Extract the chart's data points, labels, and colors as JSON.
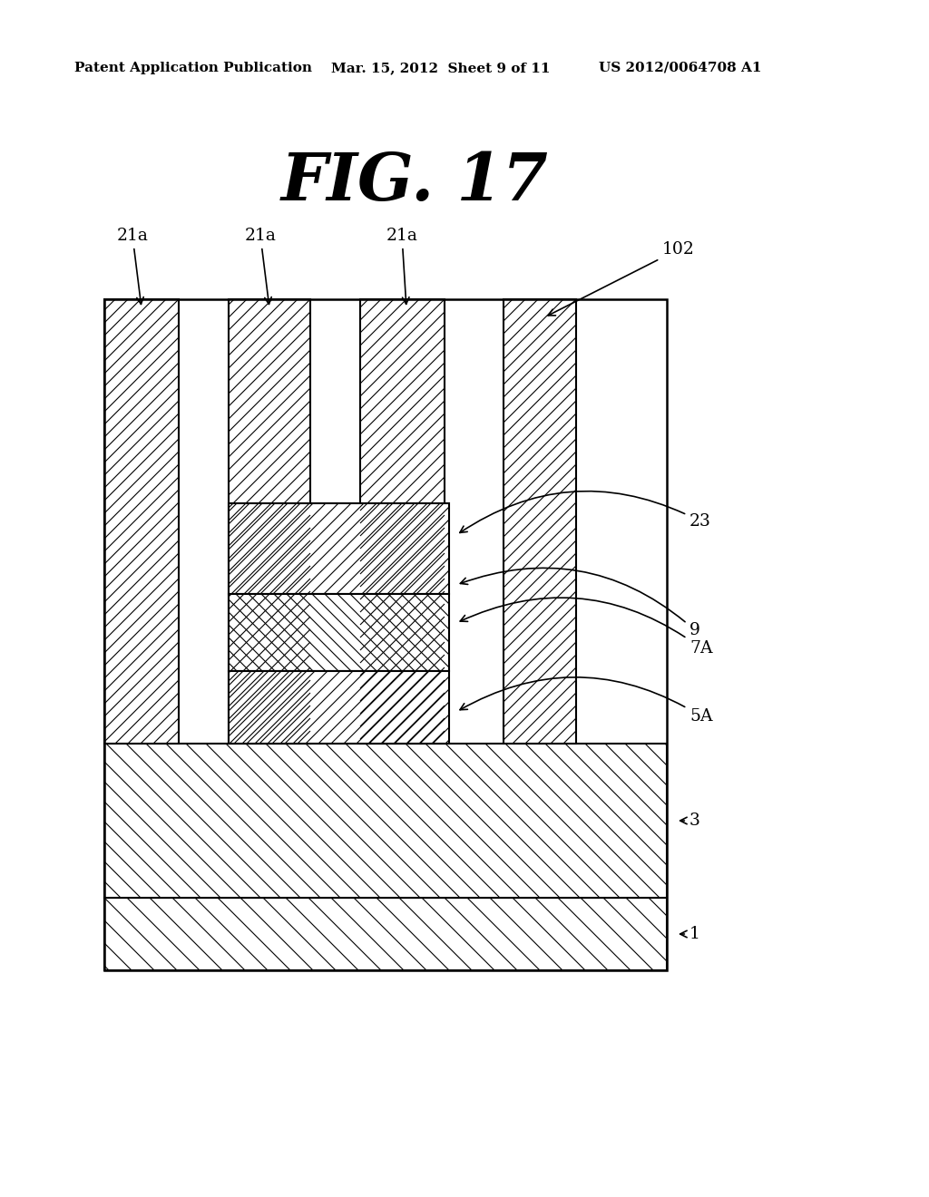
{
  "bg_color": "#ffffff",
  "header_left": "Patent Application Publication",
  "header_mid": "Mar. 15, 2012  Sheet 9 of 11",
  "header_right": "US 2012/0064708 A1",
  "fig_title": "FIG. 17",
  "labels": {
    "21a_1": "21a",
    "21a_2": "21a",
    "21a_3": "21a",
    "102": "102",
    "23": "23",
    "9": "9",
    "7A": "7A",
    "5A": "5A",
    "3": "3",
    "1": "1"
  }
}
